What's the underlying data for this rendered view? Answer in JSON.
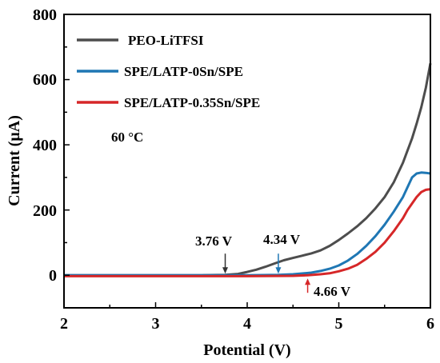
{
  "chart_data": {
    "type": "line",
    "xlabel": "Potential (V)",
    "ylabel": "Current (μA)",
    "xlim": [
      2,
      6
    ],
    "ylim": [
      -100,
      800
    ],
    "xticks": [
      "2",
      "3",
      "4",
      "5",
      "6"
    ],
    "yticks": [
      "0",
      "200",
      "400",
      "600",
      "800"
    ],
    "grid": false,
    "legend_position": "top-left",
    "annotation": "60 °C",
    "series": [
      {
        "name": "PEO-LiTFSI",
        "color": "#4d4d4d",
        "x": [
          2.0,
          3.0,
          3.5,
          3.76,
          3.9,
          4.0,
          4.1,
          4.2,
          4.3,
          4.4,
          4.5,
          4.6,
          4.7,
          4.8,
          4.9,
          5.0,
          5.1,
          5.2,
          5.3,
          5.4,
          5.5,
          5.6,
          5.7,
          5.8,
          5.85,
          5.9,
          5.95,
          6.0
        ],
        "y": [
          0,
          0,
          0,
          1,
          4,
          10,
          17,
          26,
          36,
          46,
          53,
          60,
          67,
          76,
          90,
          108,
          128,
          150,
          175,
          205,
          240,
          285,
          345,
          420,
          465,
          515,
          575,
          650
        ]
      },
      {
        "name": "SPE/LATP-0Sn/SPE",
        "color": "#1f77b4",
        "x": [
          2.0,
          3.0,
          4.0,
          4.34,
          4.5,
          4.7,
          4.8,
          4.9,
          5.0,
          5.1,
          5.2,
          5.3,
          5.4,
          5.5,
          5.6,
          5.7,
          5.75,
          5.8,
          5.85,
          5.9,
          5.95,
          6.0
        ],
        "y": [
          0,
          0,
          0,
          1,
          3,
          8,
          13,
          20,
          30,
          45,
          65,
          90,
          120,
          155,
          195,
          240,
          270,
          300,
          312,
          315,
          314,
          312
        ]
      },
      {
        "name": "SPE/LATP-0.35Sn/SPE",
        "color": "#d62728",
        "x": [
          2.0,
          3.0,
          4.0,
          4.5,
          4.66,
          4.8,
          4.9,
          5.0,
          5.1,
          5.2,
          5.3,
          5.4,
          5.5,
          5.6,
          5.7,
          5.75,
          5.8,
          5.85,
          5.9,
          5.95,
          6.0
        ],
        "y": [
          -3,
          -3,
          -3,
          -2,
          0,
          3,
          6,
          12,
          20,
          32,
          50,
          72,
          100,
          135,
          175,
          200,
          220,
          240,
          255,
          262,
          264
        ]
      }
    ],
    "markers": [
      {
        "label": "3.76 V",
        "x": 3.76,
        "color": "#333333",
        "direction": "down"
      },
      {
        "label": "4.34 V",
        "x": 4.34,
        "color": "#1f77b4",
        "direction": "down"
      },
      {
        "label": "4.66 V",
        "x": 4.66,
        "color": "#d62728",
        "direction": "up"
      }
    ]
  }
}
